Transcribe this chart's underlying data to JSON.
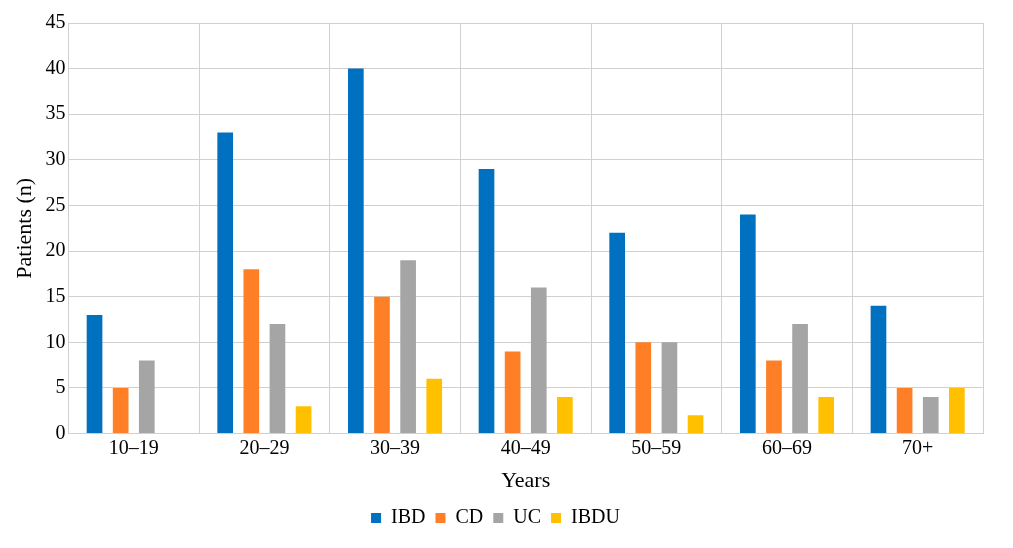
{
  "chart_data": {
    "type": "bar",
    "xlabel": "Years",
    "ylabel": "Patients (n)",
    "categories": [
      "10–19",
      "20–29",
      "30–39",
      "40–49",
      "50–59",
      "60–69",
      "70+"
    ],
    "series": [
      {
        "name": "IBD",
        "color": "#0070c0",
        "values": [
          13,
          33,
          40,
          29,
          22,
          24,
          14
        ]
      },
      {
        "name": "CD",
        "color": "#ff7f27",
        "values": [
          5,
          18,
          15,
          9,
          10,
          8,
          5
        ]
      },
      {
        "name": "UC",
        "color": "#a5a5a5",
        "values": [
          8,
          12,
          19,
          16,
          10,
          12,
          4
        ]
      },
      {
        "name": "IBDU",
        "color": "#ffc000",
        "values": [
          0,
          3,
          6,
          4,
          2,
          4,
          5
        ]
      }
    ],
    "ylim": [
      0,
      45
    ],
    "yticks": [
      0,
      5,
      10,
      15,
      20,
      25,
      30,
      35,
      40,
      45
    ],
    "grid": true,
    "legend": "bottom"
  }
}
